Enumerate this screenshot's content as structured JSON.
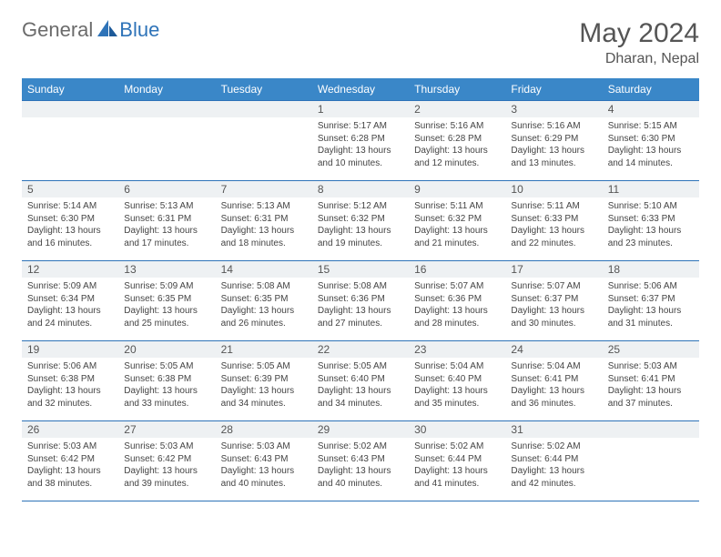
{
  "brand": {
    "part1": "General",
    "part2": "Blue"
  },
  "title": "May 2024",
  "location": "Dharan, Nepal",
  "colors": {
    "header_bg": "#3a87c8",
    "header_text": "#ffffff",
    "border": "#2e73b8",
    "daynum_bg": "#eef1f3",
    "text": "#444444",
    "brand_gray": "#6b6b6b",
    "brand_blue": "#2e73b8",
    "page_bg": "#ffffff"
  },
  "weekdays": [
    "Sunday",
    "Monday",
    "Tuesday",
    "Wednesday",
    "Thursday",
    "Friday",
    "Saturday"
  ],
  "weeks": [
    [
      {
        "num": "",
        "sunrise": "",
        "sunset": "",
        "daylight": ""
      },
      {
        "num": "",
        "sunrise": "",
        "sunset": "",
        "daylight": ""
      },
      {
        "num": "",
        "sunrise": "",
        "sunset": "",
        "daylight": ""
      },
      {
        "num": "1",
        "sunrise": "Sunrise: 5:17 AM",
        "sunset": "Sunset: 6:28 PM",
        "daylight": "Daylight: 13 hours and 10 minutes."
      },
      {
        "num": "2",
        "sunrise": "Sunrise: 5:16 AM",
        "sunset": "Sunset: 6:28 PM",
        "daylight": "Daylight: 13 hours and 12 minutes."
      },
      {
        "num": "3",
        "sunrise": "Sunrise: 5:16 AM",
        "sunset": "Sunset: 6:29 PM",
        "daylight": "Daylight: 13 hours and 13 minutes."
      },
      {
        "num": "4",
        "sunrise": "Sunrise: 5:15 AM",
        "sunset": "Sunset: 6:30 PM",
        "daylight": "Daylight: 13 hours and 14 minutes."
      }
    ],
    [
      {
        "num": "5",
        "sunrise": "Sunrise: 5:14 AM",
        "sunset": "Sunset: 6:30 PM",
        "daylight": "Daylight: 13 hours and 16 minutes."
      },
      {
        "num": "6",
        "sunrise": "Sunrise: 5:13 AM",
        "sunset": "Sunset: 6:31 PM",
        "daylight": "Daylight: 13 hours and 17 minutes."
      },
      {
        "num": "7",
        "sunrise": "Sunrise: 5:13 AM",
        "sunset": "Sunset: 6:31 PM",
        "daylight": "Daylight: 13 hours and 18 minutes."
      },
      {
        "num": "8",
        "sunrise": "Sunrise: 5:12 AM",
        "sunset": "Sunset: 6:32 PM",
        "daylight": "Daylight: 13 hours and 19 minutes."
      },
      {
        "num": "9",
        "sunrise": "Sunrise: 5:11 AM",
        "sunset": "Sunset: 6:32 PM",
        "daylight": "Daylight: 13 hours and 21 minutes."
      },
      {
        "num": "10",
        "sunrise": "Sunrise: 5:11 AM",
        "sunset": "Sunset: 6:33 PM",
        "daylight": "Daylight: 13 hours and 22 minutes."
      },
      {
        "num": "11",
        "sunrise": "Sunrise: 5:10 AM",
        "sunset": "Sunset: 6:33 PM",
        "daylight": "Daylight: 13 hours and 23 minutes."
      }
    ],
    [
      {
        "num": "12",
        "sunrise": "Sunrise: 5:09 AM",
        "sunset": "Sunset: 6:34 PM",
        "daylight": "Daylight: 13 hours and 24 minutes."
      },
      {
        "num": "13",
        "sunrise": "Sunrise: 5:09 AM",
        "sunset": "Sunset: 6:35 PM",
        "daylight": "Daylight: 13 hours and 25 minutes."
      },
      {
        "num": "14",
        "sunrise": "Sunrise: 5:08 AM",
        "sunset": "Sunset: 6:35 PM",
        "daylight": "Daylight: 13 hours and 26 minutes."
      },
      {
        "num": "15",
        "sunrise": "Sunrise: 5:08 AM",
        "sunset": "Sunset: 6:36 PM",
        "daylight": "Daylight: 13 hours and 27 minutes."
      },
      {
        "num": "16",
        "sunrise": "Sunrise: 5:07 AM",
        "sunset": "Sunset: 6:36 PM",
        "daylight": "Daylight: 13 hours and 28 minutes."
      },
      {
        "num": "17",
        "sunrise": "Sunrise: 5:07 AM",
        "sunset": "Sunset: 6:37 PM",
        "daylight": "Daylight: 13 hours and 30 minutes."
      },
      {
        "num": "18",
        "sunrise": "Sunrise: 5:06 AM",
        "sunset": "Sunset: 6:37 PM",
        "daylight": "Daylight: 13 hours and 31 minutes."
      }
    ],
    [
      {
        "num": "19",
        "sunrise": "Sunrise: 5:06 AM",
        "sunset": "Sunset: 6:38 PM",
        "daylight": "Daylight: 13 hours and 32 minutes."
      },
      {
        "num": "20",
        "sunrise": "Sunrise: 5:05 AM",
        "sunset": "Sunset: 6:38 PM",
        "daylight": "Daylight: 13 hours and 33 minutes."
      },
      {
        "num": "21",
        "sunrise": "Sunrise: 5:05 AM",
        "sunset": "Sunset: 6:39 PM",
        "daylight": "Daylight: 13 hours and 34 minutes."
      },
      {
        "num": "22",
        "sunrise": "Sunrise: 5:05 AM",
        "sunset": "Sunset: 6:40 PM",
        "daylight": "Daylight: 13 hours and 34 minutes."
      },
      {
        "num": "23",
        "sunrise": "Sunrise: 5:04 AM",
        "sunset": "Sunset: 6:40 PM",
        "daylight": "Daylight: 13 hours and 35 minutes."
      },
      {
        "num": "24",
        "sunrise": "Sunrise: 5:04 AM",
        "sunset": "Sunset: 6:41 PM",
        "daylight": "Daylight: 13 hours and 36 minutes."
      },
      {
        "num": "25",
        "sunrise": "Sunrise: 5:03 AM",
        "sunset": "Sunset: 6:41 PM",
        "daylight": "Daylight: 13 hours and 37 minutes."
      }
    ],
    [
      {
        "num": "26",
        "sunrise": "Sunrise: 5:03 AM",
        "sunset": "Sunset: 6:42 PM",
        "daylight": "Daylight: 13 hours and 38 minutes."
      },
      {
        "num": "27",
        "sunrise": "Sunrise: 5:03 AM",
        "sunset": "Sunset: 6:42 PM",
        "daylight": "Daylight: 13 hours and 39 minutes."
      },
      {
        "num": "28",
        "sunrise": "Sunrise: 5:03 AM",
        "sunset": "Sunset: 6:43 PM",
        "daylight": "Daylight: 13 hours and 40 minutes."
      },
      {
        "num": "29",
        "sunrise": "Sunrise: 5:02 AM",
        "sunset": "Sunset: 6:43 PM",
        "daylight": "Daylight: 13 hours and 40 minutes."
      },
      {
        "num": "30",
        "sunrise": "Sunrise: 5:02 AM",
        "sunset": "Sunset: 6:44 PM",
        "daylight": "Daylight: 13 hours and 41 minutes."
      },
      {
        "num": "31",
        "sunrise": "Sunrise: 5:02 AM",
        "sunset": "Sunset: 6:44 PM",
        "daylight": "Daylight: 13 hours and 42 minutes."
      },
      {
        "num": "",
        "sunrise": "",
        "sunset": "",
        "daylight": ""
      }
    ]
  ]
}
